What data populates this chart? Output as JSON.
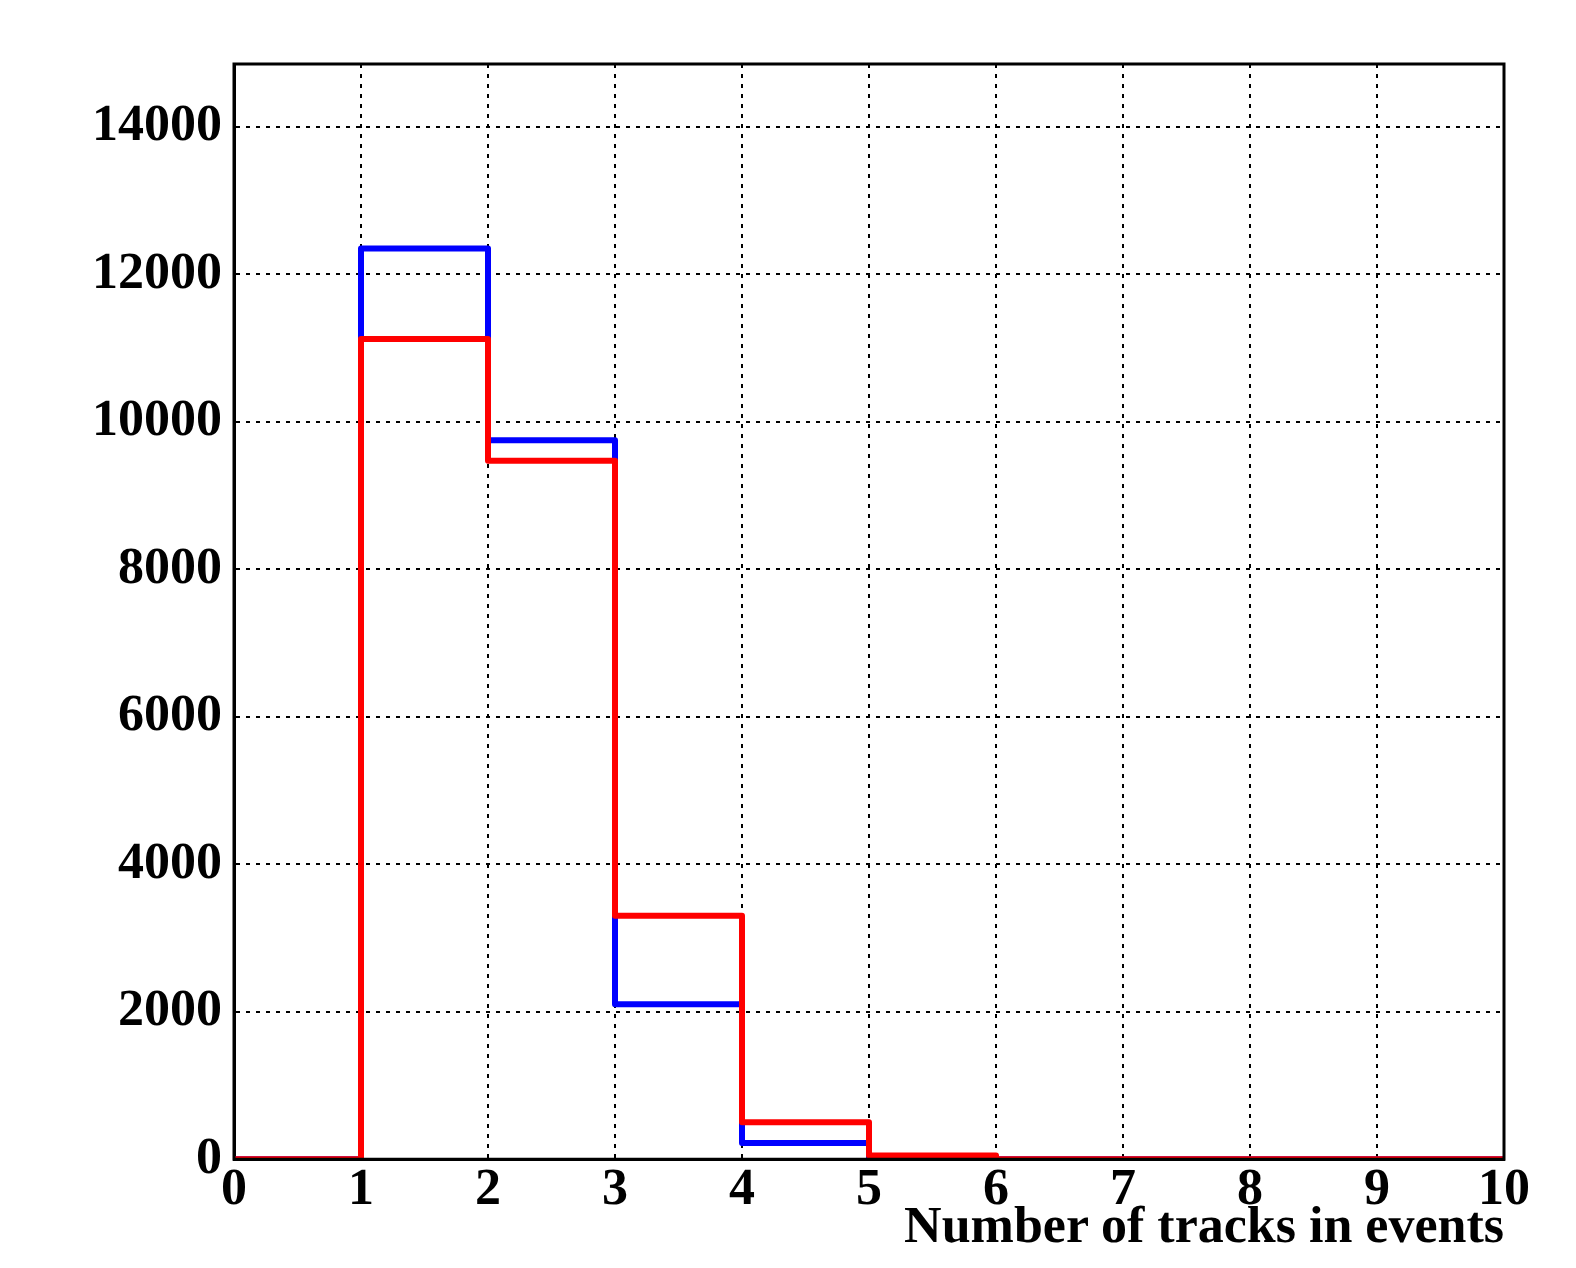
{
  "chart_data": {
    "type": "histogram",
    "xlabel": "Number of tracks in events",
    "bins": [
      0,
      1,
      2,
      3,
      4,
      5,
      6,
      7,
      8,
      9,
      10
    ],
    "series": [
      {
        "color": "#ff0000",
        "values": [
          0,
          11120,
          9470,
          3300,
          500,
          50,
          0,
          0,
          0,
          0
        ]
      },
      {
        "color": "#0000ff",
        "values": [
          0,
          12350,
          9750,
          2100,
          220,
          0,
          0,
          0,
          0,
          0
        ]
      }
    ],
    "xlim": [
      0,
      10
    ],
    "xticks": [
      0,
      1,
      2,
      3,
      4,
      5,
      6,
      7,
      8,
      9,
      10
    ],
    "ylim": [
      0,
      14850
    ],
    "yticks": [
      0,
      2000,
      4000,
      6000,
      8000,
      10000,
      12000,
      14000
    ],
    "grid": true,
    "legend": false
  }
}
